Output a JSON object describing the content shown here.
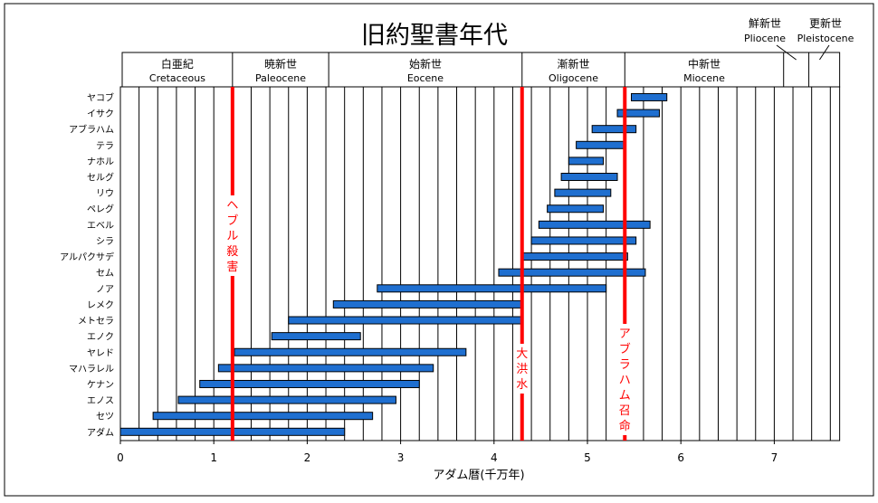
{
  "chart_data": {
    "type": "bar",
    "orientation": "horizontal-range",
    "title": "旧約聖書年代",
    "xlabel": "アダム暦(千万年)",
    "xlim": [
      0,
      7.7
    ],
    "x_ticks": [
      0,
      1,
      2,
      3,
      4,
      5,
      6,
      7
    ],
    "grid": true,
    "bar_color": "#1f6fd0",
    "marker_color": "#ff0000",
    "epochs": [
      {
        "jp": "白亜紀",
        "en": "Cretaceous",
        "start": 0,
        "end": 1.2
      },
      {
        "jp": "暁新世",
        "en": "Paleocene",
        "start": 1.2,
        "end": 2.23
      },
      {
        "jp": "始新世",
        "en": "Eocene",
        "start": 2.23,
        "end": 4.3
      },
      {
        "jp": "漸新世",
        "en": "Oligocene",
        "start": 4.3,
        "end": 5.4
      },
      {
        "jp": "中新世",
        "en": "Miocene",
        "start": 5.4,
        "end": 7.1
      },
      {
        "jp": "鮮新世",
        "en": "Pliocene",
        "start": 7.1,
        "end": 7.37
      },
      {
        "jp": "更新世",
        "en": "Pleistocene",
        "start": 7.37,
        "end": 7.6
      }
    ],
    "series": [
      {
        "name": "アダム",
        "start": 0.0,
        "end": 2.4
      },
      {
        "name": "セツ",
        "start": 0.35,
        "end": 2.7
      },
      {
        "name": "エノス",
        "start": 0.62,
        "end": 2.95
      },
      {
        "name": "ケナン",
        "start": 0.85,
        "end": 3.2
      },
      {
        "name": "マハラレル",
        "start": 1.05,
        "end": 3.35
      },
      {
        "name": "ヤレド",
        "start": 1.22,
        "end": 3.7
      },
      {
        "name": "エノク",
        "start": 1.62,
        "end": 2.57
      },
      {
        "name": "メトセラ",
        "start": 1.8,
        "end": 4.3
      },
      {
        "name": "レメク",
        "start": 2.28,
        "end": 4.3
      },
      {
        "name": "ノア",
        "start": 2.75,
        "end": 5.2
      },
      {
        "name": "セム",
        "start": 4.05,
        "end": 5.62
      },
      {
        "name": "アルパクサデ",
        "start": 4.3,
        "end": 5.43
      },
      {
        "name": "シラ",
        "start": 4.4,
        "end": 5.52
      },
      {
        "name": "エベル",
        "start": 4.48,
        "end": 5.67
      },
      {
        "name": "ペレグ",
        "start": 4.57,
        "end": 5.17
      },
      {
        "name": "リウ",
        "start": 4.65,
        "end": 5.25
      },
      {
        "name": "セルグ",
        "start": 4.72,
        "end": 5.32
      },
      {
        "name": "ナホル",
        "start": 4.8,
        "end": 5.17
      },
      {
        "name": "テラ",
        "start": 4.88,
        "end": 5.4
      },
      {
        "name": "アブラハム",
        "start": 5.05,
        "end": 5.52
      },
      {
        "name": "イサク",
        "start": 5.32,
        "end": 5.77
      },
      {
        "name": "ヤコブ",
        "start": 5.47,
        "end": 5.85
      }
    ],
    "markers": [
      {
        "x": 1.2,
        "label": "ヘブル殺害"
      },
      {
        "x": 4.3,
        "label": "大洪水"
      },
      {
        "x": 5.4,
        "label": "アブラハム召命"
      }
    ]
  }
}
